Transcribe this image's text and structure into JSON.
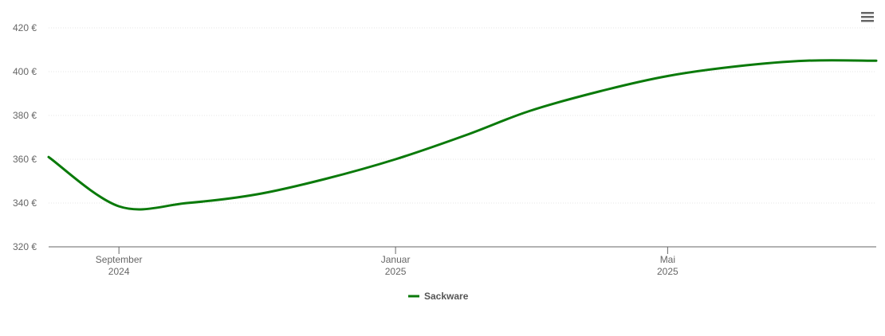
{
  "chart_data": {
    "type": "line",
    "currency_suffix": " €",
    "y_ticks": [
      320,
      340,
      360,
      380,
      400,
      420
    ],
    "ylim": [
      320,
      420
    ],
    "x_ticks": [
      {
        "date": "2024-09-01",
        "line1": "September",
        "line2": "2024"
      },
      {
        "date": "2025-01-01",
        "line1": "Januar",
        "line2": "2025"
      },
      {
        "date": "2025-05-01",
        "line1": "Mai",
        "line2": "2025"
      }
    ],
    "xlim": [
      "2024-08-01",
      "2025-08-01"
    ],
    "grid": true,
    "legend_position": "bottom-center",
    "series": [
      {
        "name": "Sackware",
        "color": "#0a7a0a",
        "points": [
          {
            "x": "2024-08-01",
            "y": 361
          },
          {
            "x": "2024-09-01",
            "y": 338.5
          },
          {
            "x": "2024-10-01",
            "y": 340
          },
          {
            "x": "2024-11-01",
            "y": 344
          },
          {
            "x": "2024-12-01",
            "y": 351
          },
          {
            "x": "2025-01-01",
            "y": 360
          },
          {
            "x": "2025-02-01",
            "y": 371
          },
          {
            "x": "2025-03-01",
            "y": 382
          },
          {
            "x": "2025-04-01",
            "y": 391
          },
          {
            "x": "2025-05-01",
            "y": 398
          },
          {
            "x": "2025-06-01",
            "y": 402.5
          },
          {
            "x": "2025-07-01",
            "y": 405
          },
          {
            "x": "2025-08-01",
            "y": 405
          }
        ]
      }
    ]
  },
  "icons": {
    "menu": "hamburger-menu-icon"
  }
}
